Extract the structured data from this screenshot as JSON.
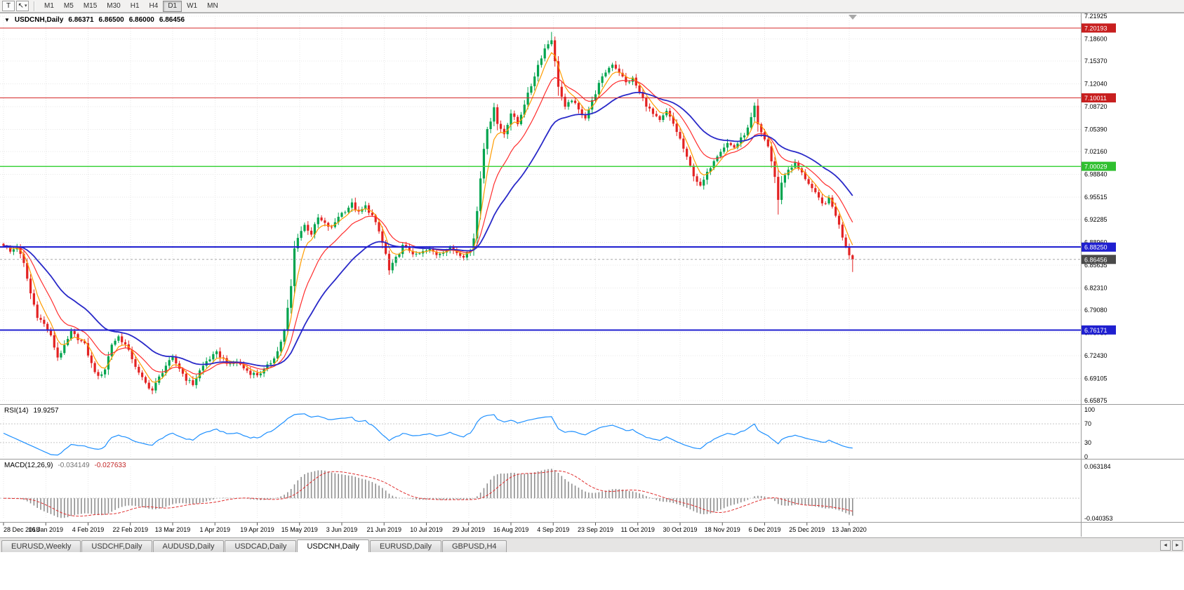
{
  "toolbar": {
    "text_tool": "T",
    "cursor_icon": "↖",
    "dropdown_caret": "▾",
    "timeframes": [
      "M1",
      "M5",
      "M15",
      "M30",
      "H1",
      "H4",
      "D1",
      "W1",
      "MN"
    ],
    "active_timeframe": "D1"
  },
  "chart": {
    "collapse_icon": "▼",
    "symbol_label": "USDCNH,Daily",
    "open": "6.86371",
    "high": "6.86500",
    "low": "6.86000",
    "close": "6.86456"
  },
  "price_axis": {
    "labels": [
      "7.21925",
      "7.18600",
      "7.15370",
      "7.12040",
      "7.08720",
      "7.05390",
      "7.02160",
      "6.98840",
      "6.95515",
      "6.92285",
      "6.88960",
      "6.85635",
      "6.82310",
      "6.79080",
      "6.75750",
      "6.72430",
      "6.69105",
      "6.65875"
    ]
  },
  "time_axis": {
    "labels": [
      "28 Dec 2018",
      "16 Jan 2019",
      "4 Feb 2019",
      "22 Feb 2019",
      "13 Mar 2019",
      "1 Apr 2019",
      "19 Apr 2019",
      "15 May 2019",
      "3 Jun 2019",
      "21 Jun 2019",
      "10 Jul 2019",
      "29 Jul 2019",
      "16 Aug 2019",
      "4 Sep 2019",
      "23 Sep 2019",
      "11 Oct 2019",
      "30 Oct 2019",
      "18 Nov 2019",
      "6 Dec 2019",
      "25 Dec 2019",
      "13 Jan 2020"
    ]
  },
  "levels": [
    {
      "price": 7.20193,
      "label": "7.20193",
      "color": "#d42a2a",
      "badge": "#c81f1f",
      "width": 1.3
    },
    {
      "price": 7.10011,
      "label": "7.10011",
      "color": "#d42a2a",
      "badge": "#c81f1f",
      "width": 1.3
    },
    {
      "price": 7.00029,
      "label": "7.00029",
      "color": "#3fd43f",
      "badge": "#2fbf2f",
      "width": 1.6
    },
    {
      "price": 6.8825,
      "label": "6.88250",
      "color": "#1f1fd0",
      "badge": "#1f1fd0",
      "width": 2
    },
    {
      "price": 6.76171,
      "label": "6.76171",
      "color": "#1f1fd0",
      "badge": "#1f1fd0",
      "width": 2
    }
  ],
  "current_price": {
    "price": 6.86456,
    "label": "6.86456",
    "badge": "#4a4a4a"
  },
  "rsi_panel": {
    "name": "RSI(14)",
    "value": "19.9257",
    "axis_labels": [
      "100",
      "70",
      "30",
      "0"
    ],
    "level_lines": [
      70,
      30
    ],
    "line_color": "#1e90ff"
  },
  "macd_panel": {
    "name": "MACD(12,26,9)",
    "main_value": "-0.034149",
    "signal_value": "-0.027633",
    "axis_top": "0.063184",
    "axis_bottom": "-0.040353",
    "hist_color": "#8f8f8f",
    "signal_color": "#e03030"
  },
  "tabs": {
    "items": [
      "EURUSD,Weekly",
      "USDCHF,Daily",
      "AUDUSD,Daily",
      "USDCAD,Daily",
      "USDCNH,Daily",
      "EURUSD,Daily",
      "GBPUSD,H4"
    ],
    "active": "USDCNH,Daily",
    "scroll_left": "◄",
    "scroll_right": "►"
  },
  "chart_data": {
    "type": "candlestick",
    "title": "USDCNH,Daily",
    "bars_total": 252,
    "y_range": [
      6.65875,
      7.21925
    ],
    "x_range_dates": [
      "28 Dec 2018",
      "13 Jan 2020"
    ],
    "last_close": 6.86456,
    "up_color": "#00a44e",
    "down_color": "#e32222",
    "close_path": [
      [
        0,
        6.886
      ],
      [
        2,
        6.8755
      ],
      [
        4,
        6.8835
      ],
      [
        6,
        6.858
      ],
      [
        8,
        6.815
      ],
      [
        10,
        6.782
      ],
      [
        12,
        6.77
      ],
      [
        14,
        6.752
      ],
      [
        16,
        6.722
      ],
      [
        18,
        6.737
      ],
      [
        20,
        6.758
      ],
      [
        22,
        6.7495
      ],
      [
        24,
        6.74
      ],
      [
        26,
        6.712
      ],
      [
        28,
        6.6925
      ],
      [
        30,
        6.705
      ],
      [
        32,
        6.741
      ],
      [
        34,
        6.752
      ],
      [
        36,
        6.74
      ],
      [
        38,
        6.7205
      ],
      [
        40,
        6.698
      ],
      [
        42,
        6.684
      ],
      [
        44,
        6.6735
      ],
      [
        46,
        6.6925
      ],
      [
        48,
        6.71
      ],
      [
        50,
        6.72
      ],
      [
        52,
        6.706
      ],
      [
        54,
        6.69
      ],
      [
        56,
        6.6825
      ],
      [
        58,
        6.702
      ],
      [
        60,
        6.716
      ],
      [
        63,
        6.728
      ],
      [
        65,
        6.7195
      ],
      [
        67,
        6.71
      ],
      [
        69,
        6.716
      ],
      [
        71,
        6.706
      ],
      [
        73,
        6.699
      ],
      [
        75,
        6.6965
      ],
      [
        77,
        6.703
      ],
      [
        79,
        6.7145
      ],
      [
        81,
        6.7305
      ],
      [
        83,
        6.76
      ],
      [
        85,
        6.825
      ],
      [
        86,
        6.88
      ],
      [
        87,
        6.898
      ],
      [
        89,
        6.9145
      ],
      [
        91,
        6.902
      ],
      [
        93,
        6.925
      ],
      [
        95,
        6.916
      ],
      [
        97,
        6.91
      ],
      [
        99,
        6.928
      ],
      [
        101,
        6.936
      ],
      [
        103,
        6.9455
      ],
      [
        105,
        6.932
      ],
      [
        107,
        6.942
      ],
      [
        109,
        6.928
      ],
      [
        111,
        6.905
      ],
      [
        113,
        6.872
      ],
      [
        114,
        6.848
      ],
      [
        116,
        6.866
      ],
      [
        118,
        6.884
      ],
      [
        120,
        6.878
      ],
      [
        122,
        6.87
      ],
      [
        124,
        6.8755
      ],
      [
        126,
        6.879
      ],
      [
        128,
        6.872
      ],
      [
        130,
        6.877
      ],
      [
        132,
        6.881
      ],
      [
        134,
        6.875
      ],
      [
        136,
        6.87
      ],
      [
        138,
        6.878
      ],
      [
        139,
        6.896
      ],
      [
        140,
        6.936
      ],
      [
        141,
        6.985
      ],
      [
        142,
        7.028
      ],
      [
        143,
        7.052
      ],
      [
        144,
        7.068
      ],
      [
        145,
        7.088
      ],
      [
        146,
        7.062
      ],
      [
        148,
        7.048
      ],
      [
        150,
        7.078
      ],
      [
        152,
        7.062
      ],
      [
        154,
        7.092
      ],
      [
        156,
        7.118
      ],
      [
        158,
        7.148
      ],
      [
        160,
        7.172
      ],
      [
        162,
        7.186
      ],
      [
        163,
        7.152
      ],
      [
        164,
        7.118
      ],
      [
        166,
        7.085
      ],
      [
        168,
        7.098
      ],
      [
        170,
        7.082
      ],
      [
        172,
        7.072
      ],
      [
        174,
        7.095
      ],
      [
        176,
        7.12
      ],
      [
        178,
        7.138
      ],
      [
        180,
        7.15
      ],
      [
        182,
        7.138
      ],
      [
        184,
        7.122
      ],
      [
        186,
        7.128
      ],
      [
        188,
        7.108
      ],
      [
        190,
        7.09
      ],
      [
        192,
        7.076
      ],
      [
        194,
        7.066
      ],
      [
        196,
        7.08
      ],
      [
        198,
        7.062
      ],
      [
        200,
        7.04
      ],
      [
        202,
        7.012
      ],
      [
        204,
        6.988
      ],
      [
        206,
        6.97
      ],
      [
        208,
        6.99
      ],
      [
        210,
        7.01
      ],
      [
        212,
        7.024
      ],
      [
        214,
        7.034
      ],
      [
        216,
        7.028
      ],
      [
        218,
        7.04
      ],
      [
        220,
        7.055
      ],
      [
        222,
        7.086
      ],
      [
        223,
        7.06
      ],
      [
        224,
        7.048
      ],
      [
        226,
        7.03
      ],
      [
        228,
        6.985
      ],
      [
        229,
        6.95
      ],
      [
        230,
        6.978
      ],
      [
        232,
        6.996
      ],
      [
        234,
        7.004
      ],
      [
        236,
        6.99
      ],
      [
        238,
        6.976
      ],
      [
        240,
        6.96
      ],
      [
        242,
        6.945
      ],
      [
        244,
        6.952
      ],
      [
        246,
        6.93
      ],
      [
        248,
        6.898
      ],
      [
        250,
        6.872
      ],
      [
        251,
        6.86456
      ]
    ],
    "overlays": [
      {
        "name": "ma-fast",
        "type": "ema",
        "period": 5,
        "color": "#ff9c00"
      },
      {
        "name": "ma-medium",
        "type": "ema",
        "period": 13,
        "color": "#ff2d2d"
      },
      {
        "name": "ma-slow",
        "type": "ema",
        "period": 30,
        "color": "#2929c8"
      }
    ],
    "indicators": [
      {
        "type": "rsi",
        "period": 14,
        "last": 19.9257,
        "range": [
          0,
          100
        ],
        "levels": [
          30,
          70
        ]
      },
      {
        "type": "macd",
        "fast": 12,
        "slow": 26,
        "signal": 9,
        "last_main": -0.034149,
        "last_signal": -0.027633,
        "range": [
          -0.040353,
          0.063184
        ]
      }
    ]
  }
}
